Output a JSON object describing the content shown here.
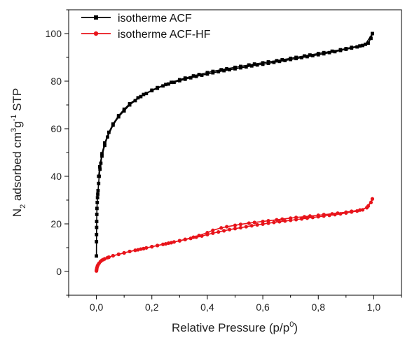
{
  "chart_data": {
    "type": "line",
    "xlabel": "Relative Pressure (p/p",
    "xlabel_sup": "0",
    "xlabel_end": ")",
    "ylabel_parts": [
      "N",
      "2",
      " adsorbed cm",
      "3",
      "g",
      "-1",
      " STP"
    ],
    "xlim": [
      -0.1,
      1.1
    ],
    "ylim": [
      -10,
      110
    ],
    "xticks": [
      0.0,
      0.2,
      0.4,
      0.6,
      0.8,
      1.0
    ],
    "xtick_labels": [
      "0,0",
      "0,2",
      "0,4",
      "0,6",
      "0,8",
      "1,0"
    ],
    "yticks": [
      0,
      20,
      40,
      60,
      80,
      100
    ],
    "ytick_labels": [
      "0",
      "20",
      "40",
      "60",
      "80",
      "100"
    ],
    "grid": false,
    "legend_position": "top-left",
    "series": [
      {
        "name": "isotherme ACF",
        "color": "#000000",
        "marker": "square",
        "adsorption": [
          [
            0.0001,
            6.5
          ],
          [
            0.0003,
            12.5
          ],
          [
            0.0005,
            15.5
          ],
          [
            0.0008,
            18.5
          ],
          [
            0.001,
            21
          ],
          [
            0.0015,
            24
          ],
          [
            0.002,
            26.5
          ],
          [
            0.003,
            29
          ],
          [
            0.004,
            31
          ],
          [
            0.005,
            32.5
          ],
          [
            0.006,
            34
          ],
          [
            0.008,
            37
          ],
          [
            0.01,
            40
          ],
          [
            0.013,
            43
          ],
          [
            0.016,
            45.5
          ],
          [
            0.02,
            48.5
          ],
          [
            0.03,
            53
          ],
          [
            0.04,
            56.5
          ],
          [
            0.06,
            61.5
          ],
          [
            0.08,
            65
          ],
          [
            0.1,
            67.5
          ],
          [
            0.12,
            70
          ],
          [
            0.14,
            71.8
          ],
          [
            0.16,
            73.5
          ],
          [
            0.18,
            74.8
          ],
          [
            0.2,
            76
          ],
          [
            0.22,
            77
          ],
          [
            0.24,
            78
          ],
          [
            0.26,
            78.8
          ],
          [
            0.28,
            79.5
          ],
          [
            0.3,
            80.2
          ],
          [
            0.32,
            80.8
          ],
          [
            0.34,
            81.4
          ],
          [
            0.36,
            82
          ],
          [
            0.38,
            82.5
          ],
          [
            0.4,
            83
          ],
          [
            0.42,
            83.5
          ],
          [
            0.44,
            84
          ],
          [
            0.46,
            84.4
          ],
          [
            0.48,
            84.8
          ],
          [
            0.5,
            85.2
          ],
          [
            0.52,
            85.6
          ],
          [
            0.54,
            86
          ],
          [
            0.56,
            86.4
          ],
          [
            0.58,
            86.8
          ],
          [
            0.6,
            87.1
          ],
          [
            0.62,
            87.5
          ],
          [
            0.64,
            87.9
          ],
          [
            0.66,
            88.3
          ],
          [
            0.68,
            88.7
          ],
          [
            0.7,
            89.1
          ],
          [
            0.72,
            89.5
          ],
          [
            0.74,
            89.9
          ],
          [
            0.76,
            90.3
          ],
          [
            0.78,
            90.7
          ],
          [
            0.8,
            91.1
          ],
          [
            0.82,
            91.5
          ],
          [
            0.84,
            92
          ],
          [
            0.86,
            92.4
          ],
          [
            0.88,
            92.9
          ],
          [
            0.9,
            93.4
          ],
          [
            0.92,
            93.9
          ],
          [
            0.94,
            94.4
          ],
          [
            0.96,
            95
          ],
          [
            0.98,
            96
          ],
          [
            0.99,
            98
          ],
          [
            0.995,
            100
          ]
        ],
        "desorption": [
          [
            0.995,
            100
          ],
          [
            0.97,
            95.5
          ],
          [
            0.95,
            94.8
          ],
          [
            0.92,
            94.2
          ],
          [
            0.9,
            93.7
          ],
          [
            0.88,
            93.2
          ],
          [
            0.85,
            92.6
          ],
          [
            0.82,
            92
          ],
          [
            0.8,
            91.6
          ],
          [
            0.77,
            91
          ],
          [
            0.75,
            90.6
          ],
          [
            0.72,
            90
          ],
          [
            0.7,
            89.6
          ],
          [
            0.67,
            89
          ],
          [
            0.65,
            88.6
          ],
          [
            0.62,
            88.1
          ],
          [
            0.6,
            87.7
          ],
          [
            0.57,
            87.2
          ],
          [
            0.55,
            86.8
          ],
          [
            0.52,
            86.2
          ],
          [
            0.5,
            85.8
          ],
          [
            0.47,
            85.2
          ],
          [
            0.45,
            84.8
          ],
          [
            0.42,
            84.1
          ],
          [
            0.4,
            83.6
          ],
          [
            0.37,
            82.8
          ],
          [
            0.35,
            82.2
          ],
          [
            0.32,
            81.3
          ],
          [
            0.3,
            80.6
          ],
          [
            0.27,
            79.5
          ],
          [
            0.25,
            78.6
          ],
          [
            0.22,
            77.3
          ],
          [
            0.2,
            76.2
          ],
          [
            0.17,
            74.4
          ],
          [
            0.15,
            73
          ],
          [
            0.12,
            70.5
          ],
          [
            0.1,
            68.2
          ],
          [
            0.08,
            65.5
          ],
          [
            0.06,
            62
          ],
          [
            0.045,
            58.5
          ],
          [
            0.03,
            54
          ],
          [
            0.02,
            49.5
          ],
          [
            0.012,
            44
          ],
          [
            0.008,
            40
          ]
        ]
      },
      {
        "name": "isotherme ACF-HF",
        "color": "#e8141b",
        "marker": "circle",
        "adsorption": [
          [
            0.0001,
            0.2
          ],
          [
            0.0005,
            0.6
          ],
          [
            0.001,
            1
          ],
          [
            0.002,
            1.6
          ],
          [
            0.004,
            2.3
          ],
          [
            0.006,
            2.8
          ],
          [
            0.01,
            3.5
          ],
          [
            0.015,
            4.2
          ],
          [
            0.02,
            4.7
          ],
          [
            0.03,
            5.3
          ],
          [
            0.045,
            6
          ],
          [
            0.06,
            6.6
          ],
          [
            0.08,
            7.2
          ],
          [
            0.1,
            7.8
          ],
          [
            0.12,
            8.4
          ],
          [
            0.14,
            8.9
          ],
          [
            0.16,
            9.4
          ],
          [
            0.18,
            9.9
          ],
          [
            0.2,
            10.4
          ],
          [
            0.22,
            10.9
          ],
          [
            0.24,
            11.4
          ],
          [
            0.26,
            11.9
          ],
          [
            0.28,
            12.4
          ],
          [
            0.3,
            12.9
          ],
          [
            0.32,
            13.4
          ],
          [
            0.34,
            13.9
          ],
          [
            0.36,
            14.4
          ],
          [
            0.38,
            14.9
          ],
          [
            0.4,
            15.5
          ],
          [
            0.42,
            16.1
          ],
          [
            0.44,
            16.6
          ],
          [
            0.46,
            17.1
          ],
          [
            0.48,
            17.6
          ],
          [
            0.5,
            18
          ],
          [
            0.52,
            18.4
          ],
          [
            0.54,
            18.8
          ],
          [
            0.56,
            19.2
          ],
          [
            0.58,
            19.6
          ],
          [
            0.6,
            19.9
          ],
          [
            0.62,
            20.3
          ],
          [
            0.64,
            20.6
          ],
          [
            0.66,
            20.9
          ],
          [
            0.68,
            21.2
          ],
          [
            0.7,
            21.5
          ],
          [
            0.72,
            21.8
          ],
          [
            0.74,
            22.1
          ],
          [
            0.76,
            22.4
          ],
          [
            0.78,
            22.7
          ],
          [
            0.8,
            23
          ],
          [
            0.82,
            23.3
          ],
          [
            0.84,
            23.6
          ],
          [
            0.86,
            23.9
          ],
          [
            0.88,
            24.2
          ],
          [
            0.9,
            24.6
          ],
          [
            0.92,
            25
          ],
          [
            0.94,
            25.4
          ],
          [
            0.96,
            25.9
          ],
          [
            0.98,
            27.5
          ],
          [
            0.99,
            29
          ],
          [
            0.995,
            30.5
          ]
        ],
        "desorption": [
          [
            0.995,
            30.5
          ],
          [
            0.975,
            26.8
          ],
          [
            0.95,
            25.8
          ],
          [
            0.92,
            25.3
          ],
          [
            0.9,
            24.9
          ],
          [
            0.87,
            24.5
          ],
          [
            0.85,
            24.2
          ],
          [
            0.82,
            23.9
          ],
          [
            0.8,
            23.6
          ],
          [
            0.77,
            23.3
          ],
          [
            0.75,
            23
          ],
          [
            0.72,
            22.7
          ],
          [
            0.7,
            22.4
          ],
          [
            0.67,
            22
          ],
          [
            0.65,
            21.7
          ],
          [
            0.62,
            21.3
          ],
          [
            0.6,
            21
          ],
          [
            0.57,
            20.6
          ],
          [
            0.55,
            20.3
          ],
          [
            0.52,
            19.8
          ],
          [
            0.5,
            19.4
          ],
          [
            0.47,
            18.8
          ],
          [
            0.45,
            18.3
          ],
          [
            0.42,
            17.3
          ],
          [
            0.4,
            16.3
          ],
          [
            0.37,
            15.1
          ],
          [
            0.35,
            14.4
          ],
          [
            0.32,
            13.5
          ],
          [
            0.3,
            12.9
          ],
          [
            0.27,
            12.1
          ],
          [
            0.25,
            11.6
          ],
          [
            0.22,
            10.9
          ],
          [
            0.2,
            10.4
          ],
          [
            0.17,
            9.6
          ],
          [
            0.15,
            9.1
          ],
          [
            0.12,
            8.4
          ],
          [
            0.1,
            7.8
          ],
          [
            0.08,
            7.2
          ],
          [
            0.06,
            6.6
          ],
          [
            0.04,
            5.8
          ],
          [
            0.025,
            5
          ]
        ]
      }
    ]
  }
}
